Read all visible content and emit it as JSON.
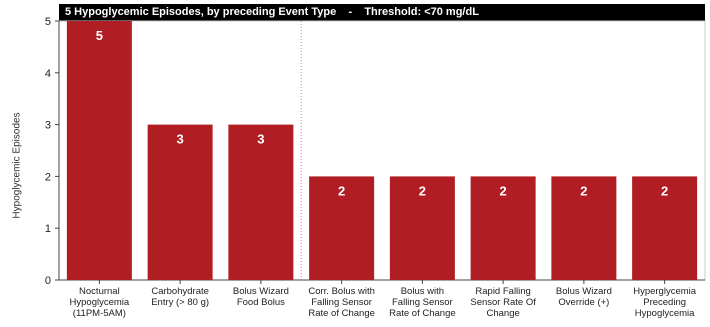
{
  "chart_data": {
    "type": "bar",
    "title": "5 Hypoglycemic Episodes, by preceding Event Type    -    Threshold: <70 mg/dL",
    "ylabel": "Hypoglycemic Episodes",
    "xlabel": "",
    "ylim": [
      0,
      5
    ],
    "yticks": [
      "0",
      "1",
      "2",
      "3",
      "4",
      "5"
    ],
    "categories": [
      [
        "Nocturnal",
        "Hypoglycemia",
        "(11PM-5AM)"
      ],
      [
        "Carbohydrate",
        "Entry (> 80 g)"
      ],
      [
        "Bolus Wizard",
        "Food Bolus"
      ],
      [
        "Corr. Bolus with",
        "Falling Sensor",
        "Rate of Change"
      ],
      [
        "Bolus with",
        "Falling Sensor",
        "Rate of Change"
      ],
      [
        "Rapid Falling",
        "Sensor Rate Of",
        "Change"
      ],
      [
        "Bolus Wizard",
        "Override (+)"
      ],
      [
        "Hyperglycemia",
        "Preceding",
        "Hypoglycemia"
      ]
    ],
    "values": [
      5,
      3,
      3,
      2,
      2,
      2,
      2,
      2
    ],
    "data_labels": [
      "5",
      "3",
      "3",
      "2",
      "2",
      "2",
      "2",
      "2"
    ],
    "bar_color": "#b01e23",
    "grid": false,
    "separator_after_index": 2
  }
}
